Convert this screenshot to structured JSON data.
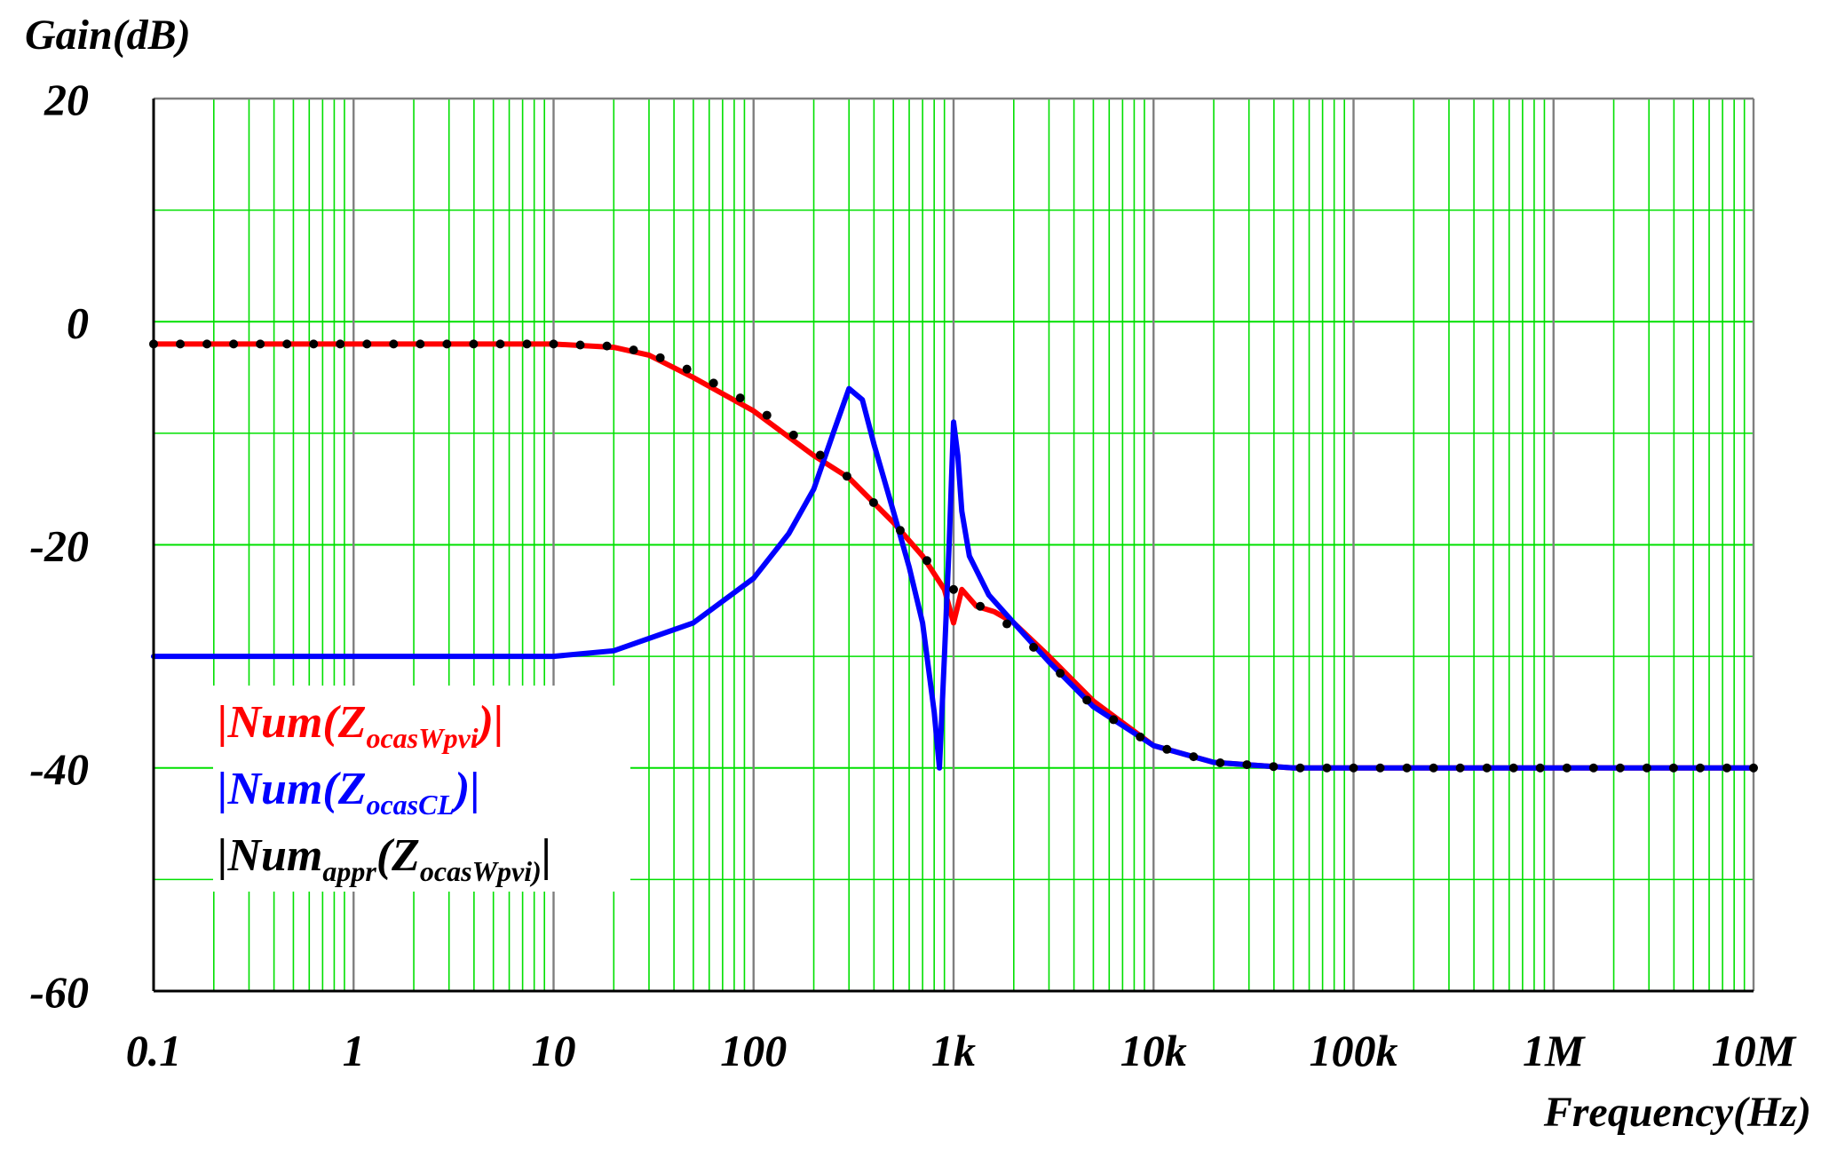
{
  "chart_data": {
    "type": "line",
    "title": "",
    "ylabel": "Gain(dB)",
    "xlabel": "Frequency(Hz)",
    "xscale": "log",
    "xlim": [
      0.1,
      10000000
    ],
    "ylim": [
      -60,
      20
    ],
    "grid": true,
    "x_ticks": [
      0.1,
      1,
      10,
      100,
      1000,
      10000,
      100000,
      1000000,
      10000000
    ],
    "x_tick_labels": [
      "0.1",
      "1",
      "10",
      "100",
      "1k",
      "10k",
      "100k",
      "1M",
      "10M"
    ],
    "y_ticks": [
      20,
      0,
      -20,
      -40,
      -60
    ],
    "y_tick_labels": [
      "20",
      "0",
      "-20",
      "-40",
      "-60"
    ],
    "colors": {
      "red": "#ff0000",
      "blue": "#0000ff",
      "black": "#000000",
      "grid_major": "#7f7f7f",
      "grid_minor": "#00e000"
    },
    "legend": {
      "placement": "lower-left",
      "entries": [
        {
          "pre": "|Num(Z",
          "sub": "ocasWpvi",
          "post": ")|",
          "sub1": "",
          "color": "#ff0000"
        },
        {
          "pre": "|Num(Z",
          "sub": "ocasCL",
          "post": ")|",
          "sub1": "",
          "color": "#0000ff"
        },
        {
          "pre": "|Num",
          "sub1": "appr",
          "mid": "(Z",
          "sub": "ocasWpvi)",
          "post": "|",
          "color": "#000000"
        }
      ]
    },
    "series": [
      {
        "name": "|Num(ZocasWpvi)|",
        "color": "#ff0000",
        "style": "solid",
        "x": [
          0.1,
          1,
          10,
          20,
          30,
          50,
          100,
          200,
          300,
          500,
          700,
          900,
          1000,
          1100,
          1300,
          1600,
          2000,
          3000,
          5000,
          10000,
          20000,
          50000,
          100000,
          1000000,
          10000000
        ],
        "y": [
          -2,
          -2,
          -2,
          -2.3,
          -3,
          -5,
          -8,
          -12,
          -14,
          -18,
          -21,
          -24,
          -27,
          -24,
          -25.5,
          -26,
          -27,
          -30,
          -34,
          -38,
          -39.5,
          -40,
          -40,
          -40,
          -40
        ]
      },
      {
        "name": "|Num(ZocasCL)|",
        "color": "#0000ff",
        "style": "solid",
        "x": [
          0.1,
          1,
          10,
          20,
          50,
          100,
          150,
          200,
          250,
          300,
          350,
          400,
          500,
          600,
          700,
          800,
          850,
          900,
          950,
          1000,
          1050,
          1100,
          1200,
          1500,
          2000,
          3000,
          5000,
          10000,
          20000,
          50000,
          100000,
          1000000,
          10000000
        ],
        "y": [
          -30,
          -30,
          -30,
          -29.5,
          -27,
          -23,
          -19,
          -15,
          -10,
          -6,
          -7,
          -11,
          -17,
          -22,
          -27,
          -35,
          -40,
          -30,
          -20,
          -9,
          -12,
          -17,
          -21,
          -24.5,
          -27,
          -30.5,
          -34.5,
          -38,
          -39.5,
          -40,
          -40,
          -40,
          -40
        ]
      },
      {
        "name": "|Numappr(ZocasWpvi)|",
        "color": "#000000",
        "style": "dotted",
        "x": [
          0.1,
          1,
          10,
          20,
          30,
          50,
          100,
          200,
          300,
          500,
          700,
          1000,
          1500,
          2000,
          3000,
          5000,
          10000,
          20000,
          50000,
          100000,
          1000000,
          10000000
        ],
        "y": [
          -2,
          -2,
          -2,
          -2.2,
          -2.8,
          -4.5,
          -7.5,
          -11.5,
          -14,
          -18,
          -21,
          -24,
          -26,
          -27.5,
          -30.5,
          -34.5,
          -38,
          -39.5,
          -40,
          -40,
          -40,
          -40
        ]
      }
    ]
  }
}
